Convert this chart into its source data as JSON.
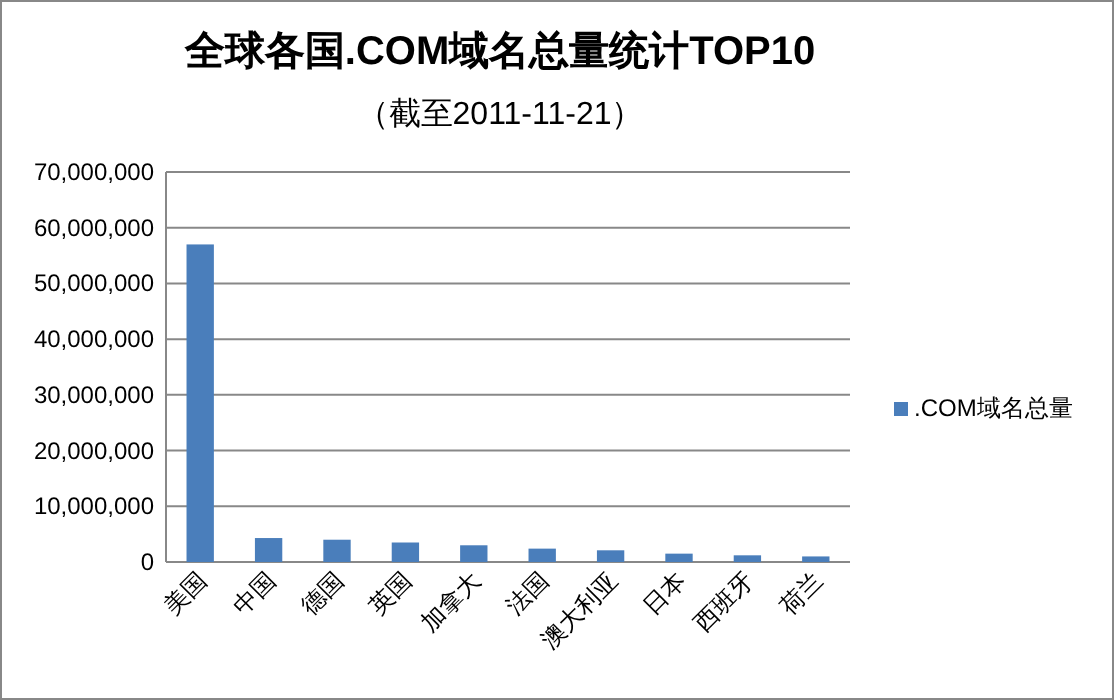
{
  "chart_data": {
    "type": "bar",
    "title": "全球各国.COM域名总量统计TOP10",
    "subtitle": "（截至2011-11-21）",
    "categories": [
      "美国",
      "中国",
      "德国",
      "英国",
      "加拿大",
      "法国",
      "澳大利亚",
      "日本",
      "西班牙",
      "荷兰"
    ],
    "series": [
      {
        "name": ".COM域名总量",
        "color": "#4a7ebb",
        "values": [
          57000000,
          4300000,
          4000000,
          3500000,
          3000000,
          2400000,
          2100000,
          1500000,
          1200000,
          1000000
        ]
      }
    ],
    "ylim": [
      0,
      70000000
    ],
    "yticks": [
      {
        "value": 0,
        "label": "0"
      },
      {
        "value": 10000000,
        "label": "10,000,000"
      },
      {
        "value": 20000000,
        "label": "20,000,000"
      },
      {
        "value": 30000000,
        "label": "30,000,000"
      },
      {
        "value": 40000000,
        "label": "40,000,000"
      },
      {
        "value": 50000000,
        "label": "50,000,000"
      },
      {
        "value": 60000000,
        "label": "60,000,000"
      },
      {
        "value": 70000000,
        "label": "70,000,000"
      }
    ],
    "grid": "y",
    "legend": "right"
  }
}
